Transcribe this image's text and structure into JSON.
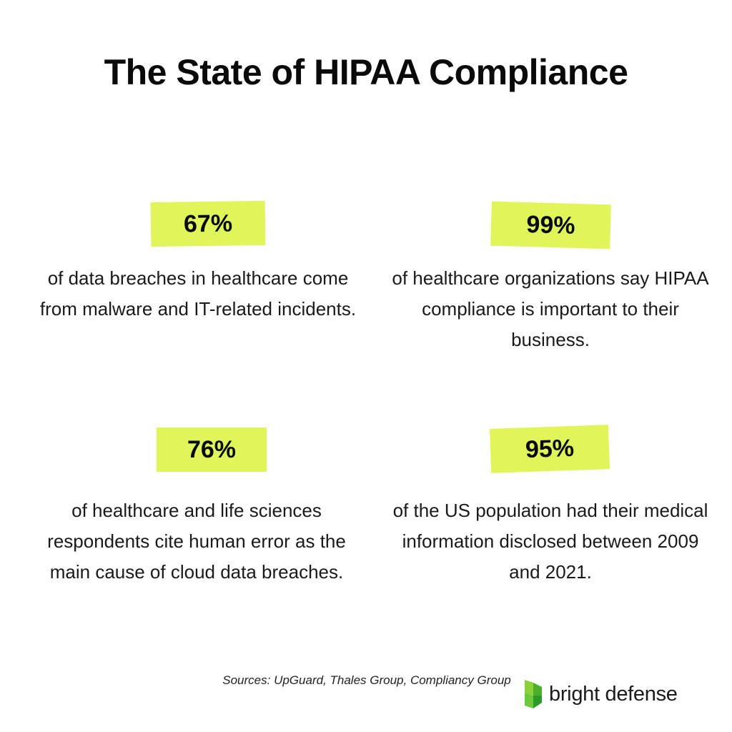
{
  "title": "The State of HIPAA Compliance",
  "accent_color": "#dff55a",
  "stats": [
    {
      "value": "67%",
      "description": "of data breaches in healthcare come from malware and IT-related incidents."
    },
    {
      "value": "99%",
      "description": "of healthcare organizations say HIPAA compliance is important to their business."
    },
    {
      "value": "76%",
      "description": "of healthcare and life sciences respondents cite human error as the main cause of cloud data breaches."
    },
    {
      "value": "95%",
      "description": "of the US population had their medical information disclosed between 2009 and 2021."
    }
  ],
  "footer": {
    "sources": "Sources: UpGuard, Thales Group, Compliancy Group",
    "brand_name": "bright defense",
    "brand_icon": "bright-defense-logo-icon"
  }
}
